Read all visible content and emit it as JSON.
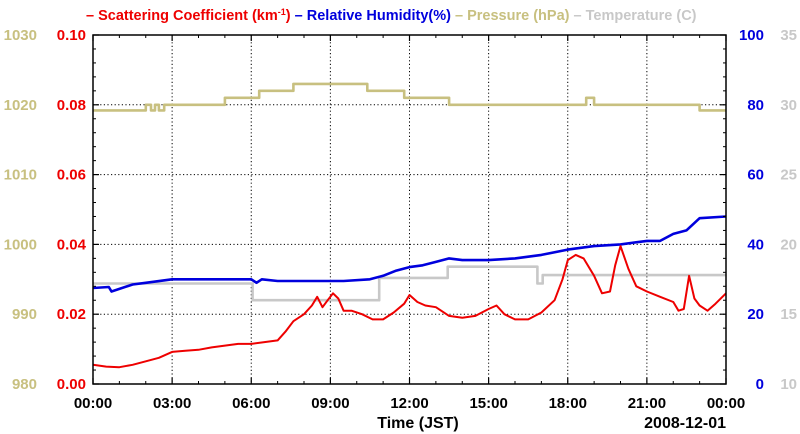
{
  "chart_data": {
    "type": "line",
    "legend": [
      {
        "label_pre": "Scattering Coefficient (km",
        "label_sup": "-1",
        "label_post": ")",
        "color": "#ee0000"
      },
      {
        "label": "Relative Humidity(%)",
        "color": "#0000dd"
      },
      {
        "label": "Pressure (hPa)",
        "color": "#c8c080"
      },
      {
        "label": "Temperature (C)",
        "color": "#c8c8c8"
      }
    ],
    "xlabel": "Time (JST)",
    "date_label": "2008-12-01",
    "x_ticks": [
      "00:00",
      "03:00",
      "06:00",
      "09:00",
      "12:00",
      "15:00",
      "18:00",
      "21:00",
      "00:00"
    ],
    "xlim_hours": [
      0,
      24
    ],
    "axes": {
      "pressure": {
        "range": [
          980,
          1030
        ],
        "ticks": [
          "980",
          "990",
          "1000",
          "1010",
          "1020",
          "1030"
        ],
        "color": "#c8c080"
      },
      "scattering": {
        "range": [
          0,
          0.1
        ],
        "ticks": [
          "0.00",
          "0.02",
          "0.04",
          "0.06",
          "0.08",
          "0.10"
        ],
        "color": "#ee0000"
      },
      "humidity": {
        "range": [
          0,
          100
        ],
        "ticks": [
          "0",
          "20",
          "40",
          "60",
          "80",
          "100"
        ],
        "color": "#0000dd"
      },
      "temperature": {
        "range": [
          10,
          35
        ],
        "ticks": [
          "10",
          "15",
          "20",
          "25",
          "30",
          "35"
        ],
        "color": "#c8c8c8"
      }
    },
    "series": [
      {
        "name": "Pressure (hPa)",
        "axis": "pressure",
        "step": true,
        "x": [
          0,
          1.9,
          2.0,
          2.2,
          2.35,
          2.5,
          2.7,
          4.8,
          5.0,
          6.2,
          6.3,
          7.5,
          7.6,
          10.3,
          10.4,
          11.7,
          11.8,
          13.4,
          13.5,
          18.6,
          18.7,
          18.9,
          19.0,
          22.9,
          23.0,
          24.0
        ],
        "y": [
          1019.2,
          1019.2,
          1020.0,
          1019.2,
          1020.0,
          1019.2,
          1020.0,
          1020.0,
          1021.0,
          1021.0,
          1022.0,
          1022.0,
          1023.0,
          1023.0,
          1022.0,
          1022.0,
          1021.0,
          1021.0,
          1020.0,
          1020.0,
          1021.0,
          1021.0,
          1020.0,
          1020.0,
          1019.2,
          1019.2
        ]
      },
      {
        "name": "Temperature (C)",
        "axis": "temperature",
        "step": true,
        "x": [
          0,
          6.0,
          6.05,
          10.8,
          10.85,
          13.4,
          13.45,
          16.8,
          16.85,
          17.0,
          17.05,
          24.0
        ],
        "y": [
          17.2,
          17.2,
          16.0,
          16.0,
          17.6,
          17.6,
          18.4,
          18.4,
          17.2,
          17.2,
          17.8,
          17.8
        ]
      },
      {
        "name": "Relative Humidity(%)",
        "axis": "humidity",
        "x": [
          0,
          0.6,
          0.7,
          1.5,
          2.0,
          3.0,
          4.0,
          5.0,
          6.0,
          6.2,
          6.4,
          7.0,
          8.5,
          9.5,
          10.5,
          11.0,
          11.5,
          12.0,
          12.5,
          13.0,
          13.5,
          14.0,
          15.0,
          16.0,
          17.0,
          18.0,
          19.0,
          20.0,
          21.0,
          21.5,
          22.0,
          22.5,
          23.0,
          24.0
        ],
        "y": [
          27.5,
          27.8,
          26.5,
          28.5,
          29.0,
          30.0,
          30.0,
          30.0,
          30.0,
          29.0,
          30.0,
          29.5,
          29.5,
          29.5,
          30.0,
          31.0,
          32.5,
          33.5,
          34.0,
          35.0,
          36.0,
          35.5,
          35.5,
          36.0,
          37.0,
          38.5,
          39.5,
          40.0,
          41.0,
          41.0,
          43.0,
          44.0,
          47.5,
          48.0
        ]
      },
      {
        "name": "Scattering Coefficient",
        "axis": "scattering",
        "x": [
          0,
          0.5,
          1.0,
          1.5,
          2.0,
          2.5,
          3.0,
          3.5,
          4.0,
          4.5,
          5.0,
          5.5,
          6.0,
          6.5,
          7.0,
          7.3,
          7.6,
          8.0,
          8.3,
          8.5,
          8.7,
          8.9,
          9.1,
          9.3,
          9.5,
          9.8,
          10.2,
          10.6,
          11.0,
          11.4,
          11.8,
          12.0,
          12.3,
          12.6,
          13.0,
          13.5,
          14.0,
          14.5,
          15.0,
          15.3,
          15.6,
          16.0,
          16.5,
          17.0,
          17.5,
          17.8,
          18.0,
          18.3,
          18.6,
          19.0,
          19.3,
          19.6,
          19.8,
          20.0,
          20.3,
          20.6,
          21.0,
          21.5,
          22.0,
          22.2,
          22.4,
          22.6,
          22.8,
          23.0,
          23.3,
          23.6,
          24.0
        ],
        "y": [
          0.0055,
          0.005,
          0.0048,
          0.0055,
          0.0065,
          0.0075,
          0.0092,
          0.0095,
          0.0098,
          0.0105,
          0.011,
          0.0115,
          0.0115,
          0.012,
          0.0125,
          0.015,
          0.018,
          0.02,
          0.0225,
          0.025,
          0.022,
          0.024,
          0.026,
          0.0245,
          0.021,
          0.021,
          0.02,
          0.0185,
          0.0185,
          0.0205,
          0.023,
          0.0255,
          0.0235,
          0.0225,
          0.022,
          0.0195,
          0.019,
          0.0195,
          0.0215,
          0.0225,
          0.02,
          0.0185,
          0.0185,
          0.0205,
          0.024,
          0.03,
          0.0355,
          0.037,
          0.036,
          0.031,
          0.026,
          0.0265,
          0.034,
          0.0395,
          0.033,
          0.028,
          0.0265,
          0.025,
          0.0235,
          0.021,
          0.0215,
          0.031,
          0.0245,
          0.0225,
          0.021,
          0.023,
          0.026
        ]
      }
    ]
  }
}
